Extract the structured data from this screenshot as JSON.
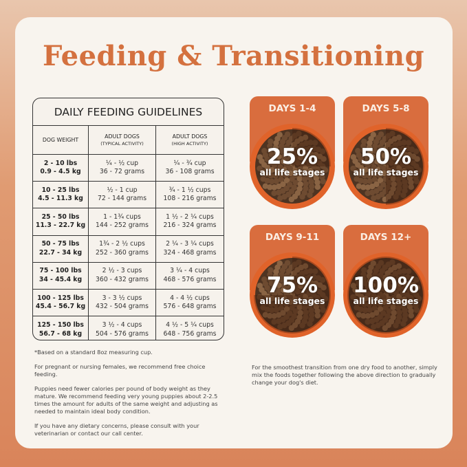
{
  "title": "Feeding & Transitioning",
  "table": {
    "heading": "DAILY FEEDING GUIDELINES",
    "headers": [
      {
        "main": "DOG WEIGHT",
        "sub": ""
      },
      {
        "main": "ADULT DOGS",
        "sub": "(TYPICAL ACTIVITY)"
      },
      {
        "main": "ADULT DOGS",
        "sub": "(HIGH ACTIVITY)"
      }
    ],
    "rows": [
      {
        "lbs": "2 - 10 lbs",
        "kg": "0.9 - 4.5 kg",
        "typ_cups": "¼ - ½ cup",
        "typ_g": "36 - 72 grams",
        "high_cups": "¼ - ¾ cup",
        "high_g": "36 - 108 grams"
      },
      {
        "lbs": "10 - 25 lbs",
        "kg": "4.5 - 11.3 kg",
        "typ_cups": "½ - 1 cup",
        "typ_g": "72 - 144 grams",
        "high_cups": "¾ - 1 ½ cups",
        "high_g": "108 - 216 grams"
      },
      {
        "lbs": "25 - 50 lbs",
        "kg": "11.3 - 22.7 kg",
        "typ_cups": "1 - 1¾ cups",
        "typ_g": "144 - 252 grams",
        "high_cups": "1 ½ - 2 ¼ cups",
        "high_g": "216 - 324 grams"
      },
      {
        "lbs": "50 - 75 lbs",
        "kg": "22.7 - 34 kg",
        "typ_cups": "1¾ - 2 ½ cups",
        "typ_g": "252 - 360 grams",
        "high_cups": "2 ¼ - 3 ¼ cups",
        "high_g": "324 - 468 grams"
      },
      {
        "lbs": "75 - 100 lbs",
        "kg": "34 - 45.4 kg",
        "typ_cups": "2 ½ - 3 cups",
        "typ_g": "360 - 432 grams",
        "high_cups": "3 ¼ - 4 cups",
        "high_g": "468 - 576 grams"
      },
      {
        "lbs": "100 - 125 lbs",
        "kg": "45.4 - 56.7 kg",
        "typ_cups": "3 - 3 ½ cups",
        "typ_g": "432 - 504 grams",
        "high_cups": "4 - 4 ½ cups",
        "high_g": "576 - 648 grams"
      },
      {
        "lbs": "125 - 150 lbs",
        "kg": "56.7 - 68 kg",
        "typ_cups": "3 ½ - 4 cups",
        "typ_g": "504 - 576 grams",
        "high_cups": "4 ½ - 5 ¼ cups",
        "high_g": "648 - 756 grams"
      }
    ]
  },
  "notes": [
    "*Based on a standard 8oz measuring cup.",
    "For pregnant or nursing females, we recommend free choice feeding.",
    "Puppies need fewer calories per pound of body weight as they mature. We recommend feeding very young puppies about 2-2.5 times the amount for adults of the same weight and adjusting as needed to maintain ideal body condition.",
    "If you have any dietary concerns, please consult with your veterinarian or contact our call center."
  ],
  "transition_note": "For the smoothest transition from one dry food to another, simply mix the foods together following the above direction to gradually change your dog's diet.",
  "stages": [
    {
      "label": "DAYS 1-4",
      "percent": "25%",
      "fraction": 0.25,
      "sub": "all life stages"
    },
    {
      "label": "DAYS 5-8",
      "percent": "50%",
      "fraction": 0.5,
      "sub": "all life stages"
    },
    {
      "label": "DAYS 9-11",
      "percent": "75%",
      "fraction": 0.75,
      "sub": "all life stages"
    },
    {
      "label": "DAYS 12+",
      "percent": "100%",
      "fraction": 1.0,
      "sub": "all life stages"
    }
  ],
  "colors": {
    "accent": "#d96d3e",
    "title": "#d4713f",
    "card": "#f8f4ee",
    "kibble": "#6b4a32"
  }
}
